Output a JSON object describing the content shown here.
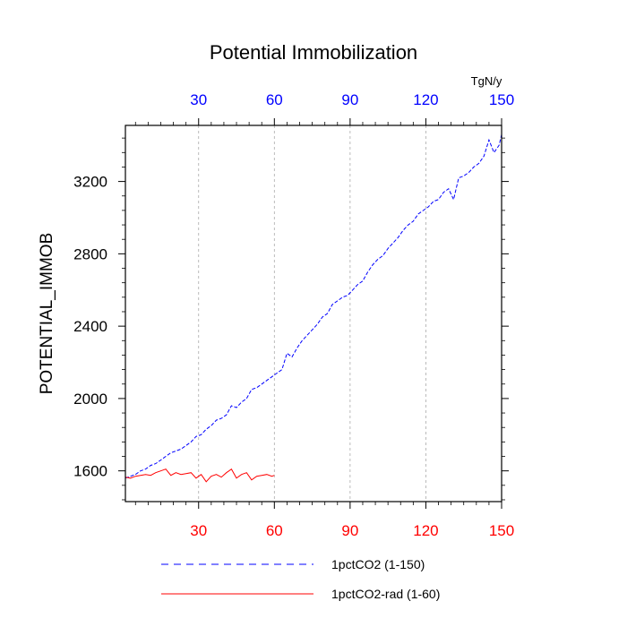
{
  "chart_data": {
    "type": "line",
    "title": "Potential Immobilization",
    "units": "TgN/y",
    "ylabel": "POTENTIAL_IMMOB",
    "xlabel": "",
    "xlim": [
      1,
      150
    ],
    "ylim": [
      1430,
      3510
    ],
    "x_ticks": [
      "30",
      "60",
      "90",
      "120",
      "150"
    ],
    "y_ticks": [
      "1600",
      "2000",
      "2400",
      "2800",
      "3200"
    ],
    "grid": "vertical dashed at x ticks",
    "colors": {
      "top_axis": "#0000ff",
      "bottom_axis": "#ff0000"
    },
    "series": [
      {
        "name": "1pctCO2 (1-150)",
        "color": "#0000ff",
        "dash": "dashed",
        "x": [
          1,
          3,
          5,
          7,
          9,
          11,
          13,
          15,
          17,
          19,
          21,
          23,
          25,
          27,
          29,
          31,
          33,
          35,
          37,
          39,
          41,
          43,
          45,
          47,
          49,
          51,
          53,
          55,
          57,
          59,
          61,
          63,
          65,
          67,
          69,
          71,
          73,
          75,
          77,
          79,
          81,
          83,
          85,
          87,
          89,
          91,
          93,
          95,
          97,
          99,
          101,
          103,
          105,
          107,
          109,
          111,
          113,
          115,
          117,
          119,
          121,
          123,
          125,
          127,
          129,
          131,
          133,
          135,
          137,
          139,
          141,
          143,
          145,
          147,
          149,
          150
        ],
        "values": [
          1560,
          1570,
          1580,
          1600,
          1610,
          1630,
          1640,
          1660,
          1680,
          1700,
          1710,
          1720,
          1740,
          1760,
          1790,
          1800,
          1830,
          1850,
          1880,
          1890,
          1910,
          1960,
          1950,
          1980,
          2000,
          2050,
          2060,
          2080,
          2100,
          2120,
          2140,
          2160,
          2250,
          2230,
          2280,
          2320,
          2350,
          2380,
          2410,
          2450,
          2470,
          2520,
          2540,
          2560,
          2570,
          2600,
          2630,
          2650,
          2700,
          2740,
          2770,
          2790,
          2830,
          2860,
          2890,
          2930,
          2960,
          2980,
          3020,
          3040,
          3060,
          3090,
          3100,
          3140,
          3160,
          3100,
          3220,
          3230,
          3250,
          3280,
          3300,
          3340,
          3430,
          3360,
          3400,
          3460
        ]
      },
      {
        "name": "1pctCO2-rad (1-60)",
        "color": "#ff0000",
        "dash": "solid",
        "x": [
          1,
          3,
          5,
          7,
          9,
          11,
          13,
          15,
          17,
          19,
          21,
          23,
          25,
          27,
          29,
          31,
          33,
          35,
          37,
          39,
          41,
          43,
          45,
          47,
          49,
          51,
          53,
          55,
          57,
          59,
          60
        ],
        "values": [
          1565,
          1560,
          1570,
          1575,
          1580,
          1575,
          1590,
          1600,
          1610,
          1575,
          1590,
          1580,
          1585,
          1590,
          1560,
          1580,
          1540,
          1570,
          1580,
          1565,
          1590,
          1610,
          1560,
          1580,
          1590,
          1550,
          1570,
          1575,
          1580,
          1570,
          1575
        ]
      }
    ]
  }
}
